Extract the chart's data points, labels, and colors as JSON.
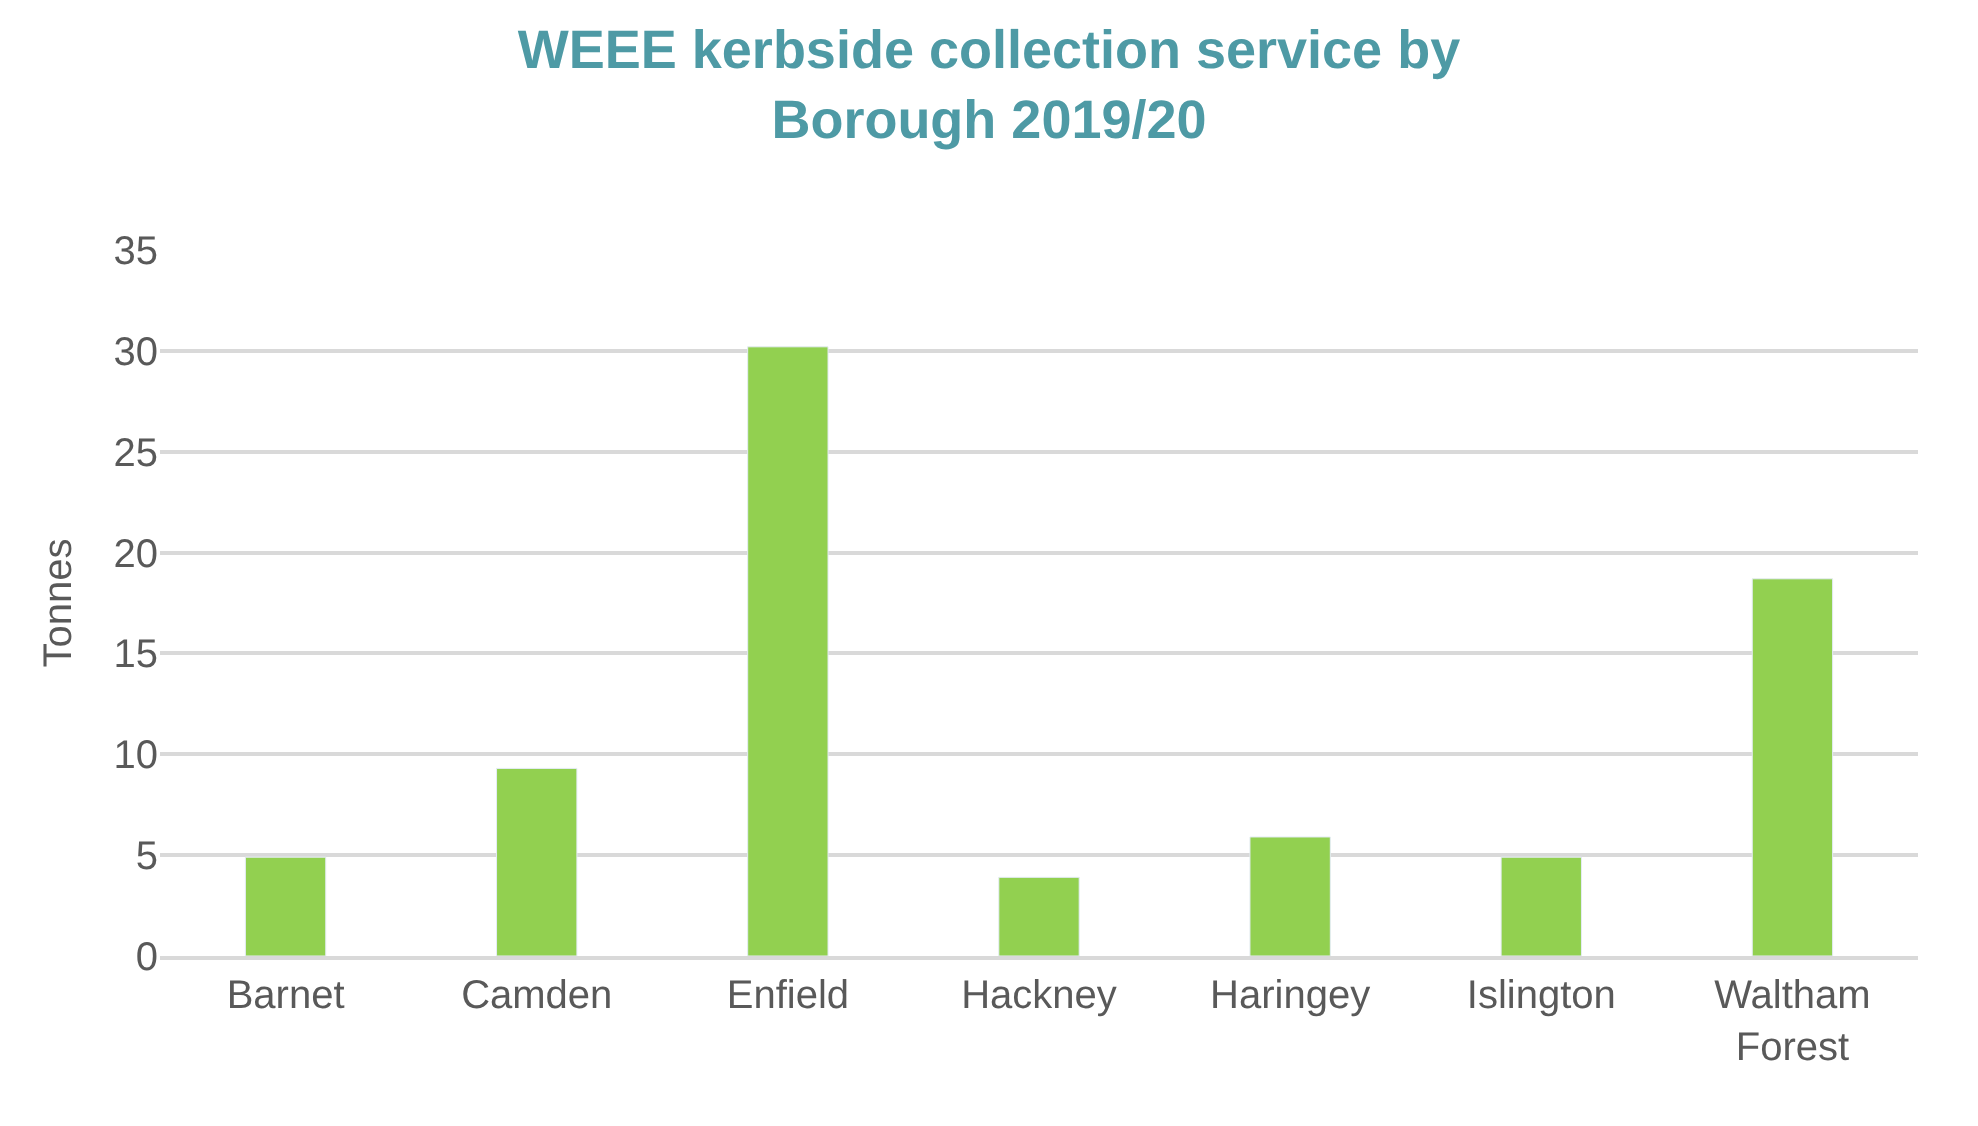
{
  "chart_data": {
    "type": "bar",
    "title": "WEEE kerbside collection service by Borough 2019/20",
    "ylabel": "Tonnes",
    "categories": [
      "Barnet",
      "Camden",
      "Enfield",
      "Hackney",
      "Haringey",
      "Islington",
      "Waltham Forest"
    ],
    "values": [
      4.9,
      9.3,
      30.2,
      3.9,
      5.9,
      4.9,
      18.7
    ],
    "color": "#92d050",
    "ylim": [
      0,
      35
    ],
    "yticks": [
      0,
      5,
      10,
      15,
      20,
      25,
      30,
      35
    ],
    "grid": "y",
    "legend": false
  }
}
